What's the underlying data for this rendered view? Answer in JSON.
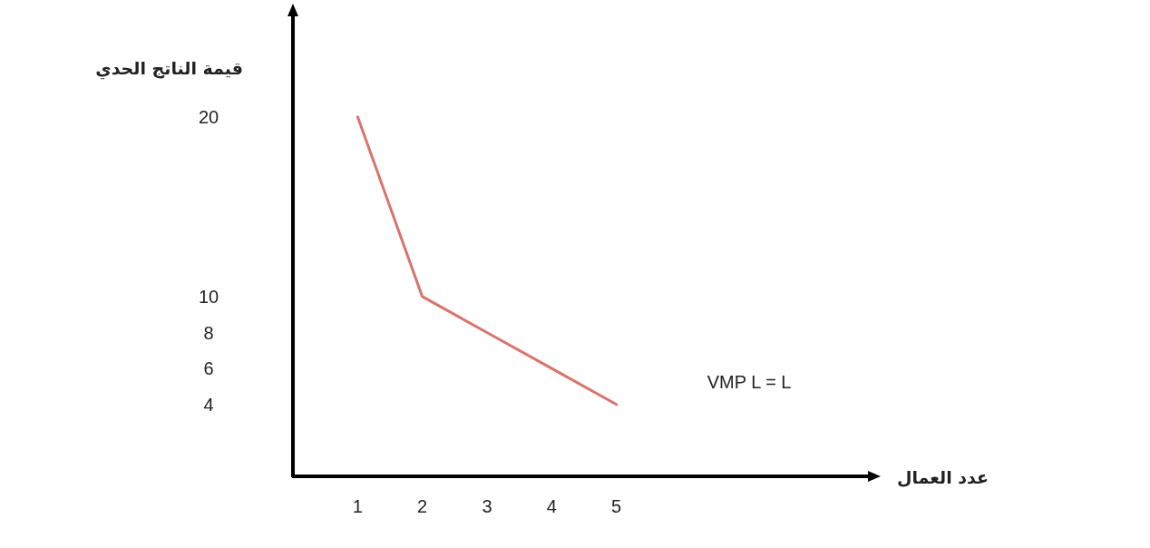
{
  "chart_data": {
    "type": "line",
    "xlabel": "عدد العمال",
    "ylabel": "قيمة الناتج الحدي",
    "x": [
      1,
      2,
      3,
      4,
      5
    ],
    "series": [
      {
        "name": "VMP L = L",
        "color": "#d9736c",
        "values": [
          20,
          10,
          8,
          6,
          4
        ]
      }
    ],
    "xlim": [
      0,
      9
    ],
    "ylim": [
      0,
      26
    ],
    "xticks": [
      1,
      2,
      3,
      4,
      5
    ],
    "yticks": [
      4,
      6,
      8,
      10,
      20
    ],
    "marker": "none",
    "line_style": "solid",
    "legend": false,
    "grid": false
  }
}
